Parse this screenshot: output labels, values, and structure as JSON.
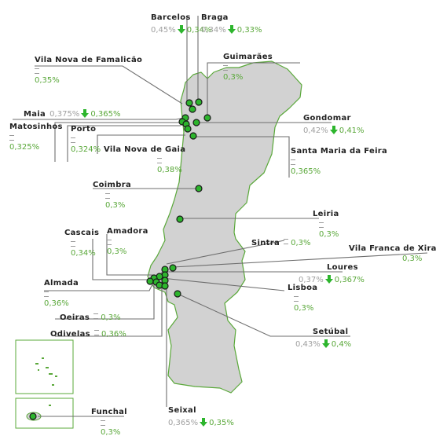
{
  "map": {
    "colors": {
      "land": "#d2d2d2",
      "border": "#5aa83a",
      "marker": "#2db52d",
      "leader": "#6e6e6e",
      "value": "#5aa83a",
      "old": "#a0a0a0"
    },
    "icons": {
      "down": "down-arrow-icon",
      "same": "equal-icon"
    },
    "cities": [
      {
        "id": "barcelos",
        "name": "Barcelos",
        "old": "0,45%",
        "trend": "down",
        "value": "0,34%"
      },
      {
        "id": "braga",
        "name": "Braga",
        "old": "0,34%",
        "trend": "down",
        "value": "0,33%"
      },
      {
        "id": "famalicao",
        "name": "Vila Nova de Famalicão",
        "trend": "same",
        "value": "0,35%"
      },
      {
        "id": "guimaraes",
        "name": "Guimarães",
        "trend": "same",
        "value": "0,3%"
      },
      {
        "id": "maia",
        "name": "Maia",
        "old": "0,375%",
        "trend": "down",
        "value": "0,365%"
      },
      {
        "id": "matosinhos",
        "name": "Matosinhos",
        "trend": "same",
        "value": "0,325%"
      },
      {
        "id": "porto",
        "name": "Porto",
        "trend": "same",
        "value": "0,324%"
      },
      {
        "id": "gondomar",
        "name": "Gondomar",
        "old": "0,42%",
        "trend": "down",
        "value": "0,41%"
      },
      {
        "id": "gaia",
        "name": "Vila Nova de Gaia",
        "trend": "same",
        "value": "0,38%"
      },
      {
        "id": "feira",
        "name": "Santa Maria da Feira",
        "trend": "same",
        "value": "0,365%"
      },
      {
        "id": "coimbra",
        "name": "Coimbra",
        "trend": "same",
        "value": "0,3%"
      },
      {
        "id": "leiria",
        "name": "Leiria",
        "trend": "same",
        "value": "0,3%"
      },
      {
        "id": "cascais",
        "name": "Cascais",
        "trend": "same",
        "value": "0,34%"
      },
      {
        "id": "amadora",
        "name": "Amadora",
        "trend": "same",
        "value": "0,3%"
      },
      {
        "id": "sintra",
        "name": "Sintra",
        "trend": "same",
        "value": "0,3%"
      },
      {
        "id": "vfxira",
        "name": "Vila Franca de Xira",
        "trend": "same",
        "value": "0,3%"
      },
      {
        "id": "loures",
        "name": "Loures",
        "old": "0,37%",
        "trend": "down",
        "value": "0,367%"
      },
      {
        "id": "almada",
        "name": "Almada",
        "trend": "same",
        "value": "0,36%"
      },
      {
        "id": "lisboa",
        "name": "Lisboa",
        "trend": "same",
        "value": "0,3%"
      },
      {
        "id": "oeiras",
        "name": "Oeiras",
        "trend": "same",
        "value": "0,3%"
      },
      {
        "id": "odivelas",
        "name": "Odivelas",
        "trend": "same",
        "value": "0,36%"
      },
      {
        "id": "setubal",
        "name": "Setúbal",
        "old": "0,43%",
        "trend": "down",
        "value": "0,4%"
      },
      {
        "id": "funchal",
        "name": "Funchal",
        "trend": "same",
        "value": "0,3%"
      },
      {
        "id": "seixal",
        "name": "Seixal",
        "old": "0,365%",
        "trend": "down",
        "value": "0,35%"
      }
    ]
  }
}
